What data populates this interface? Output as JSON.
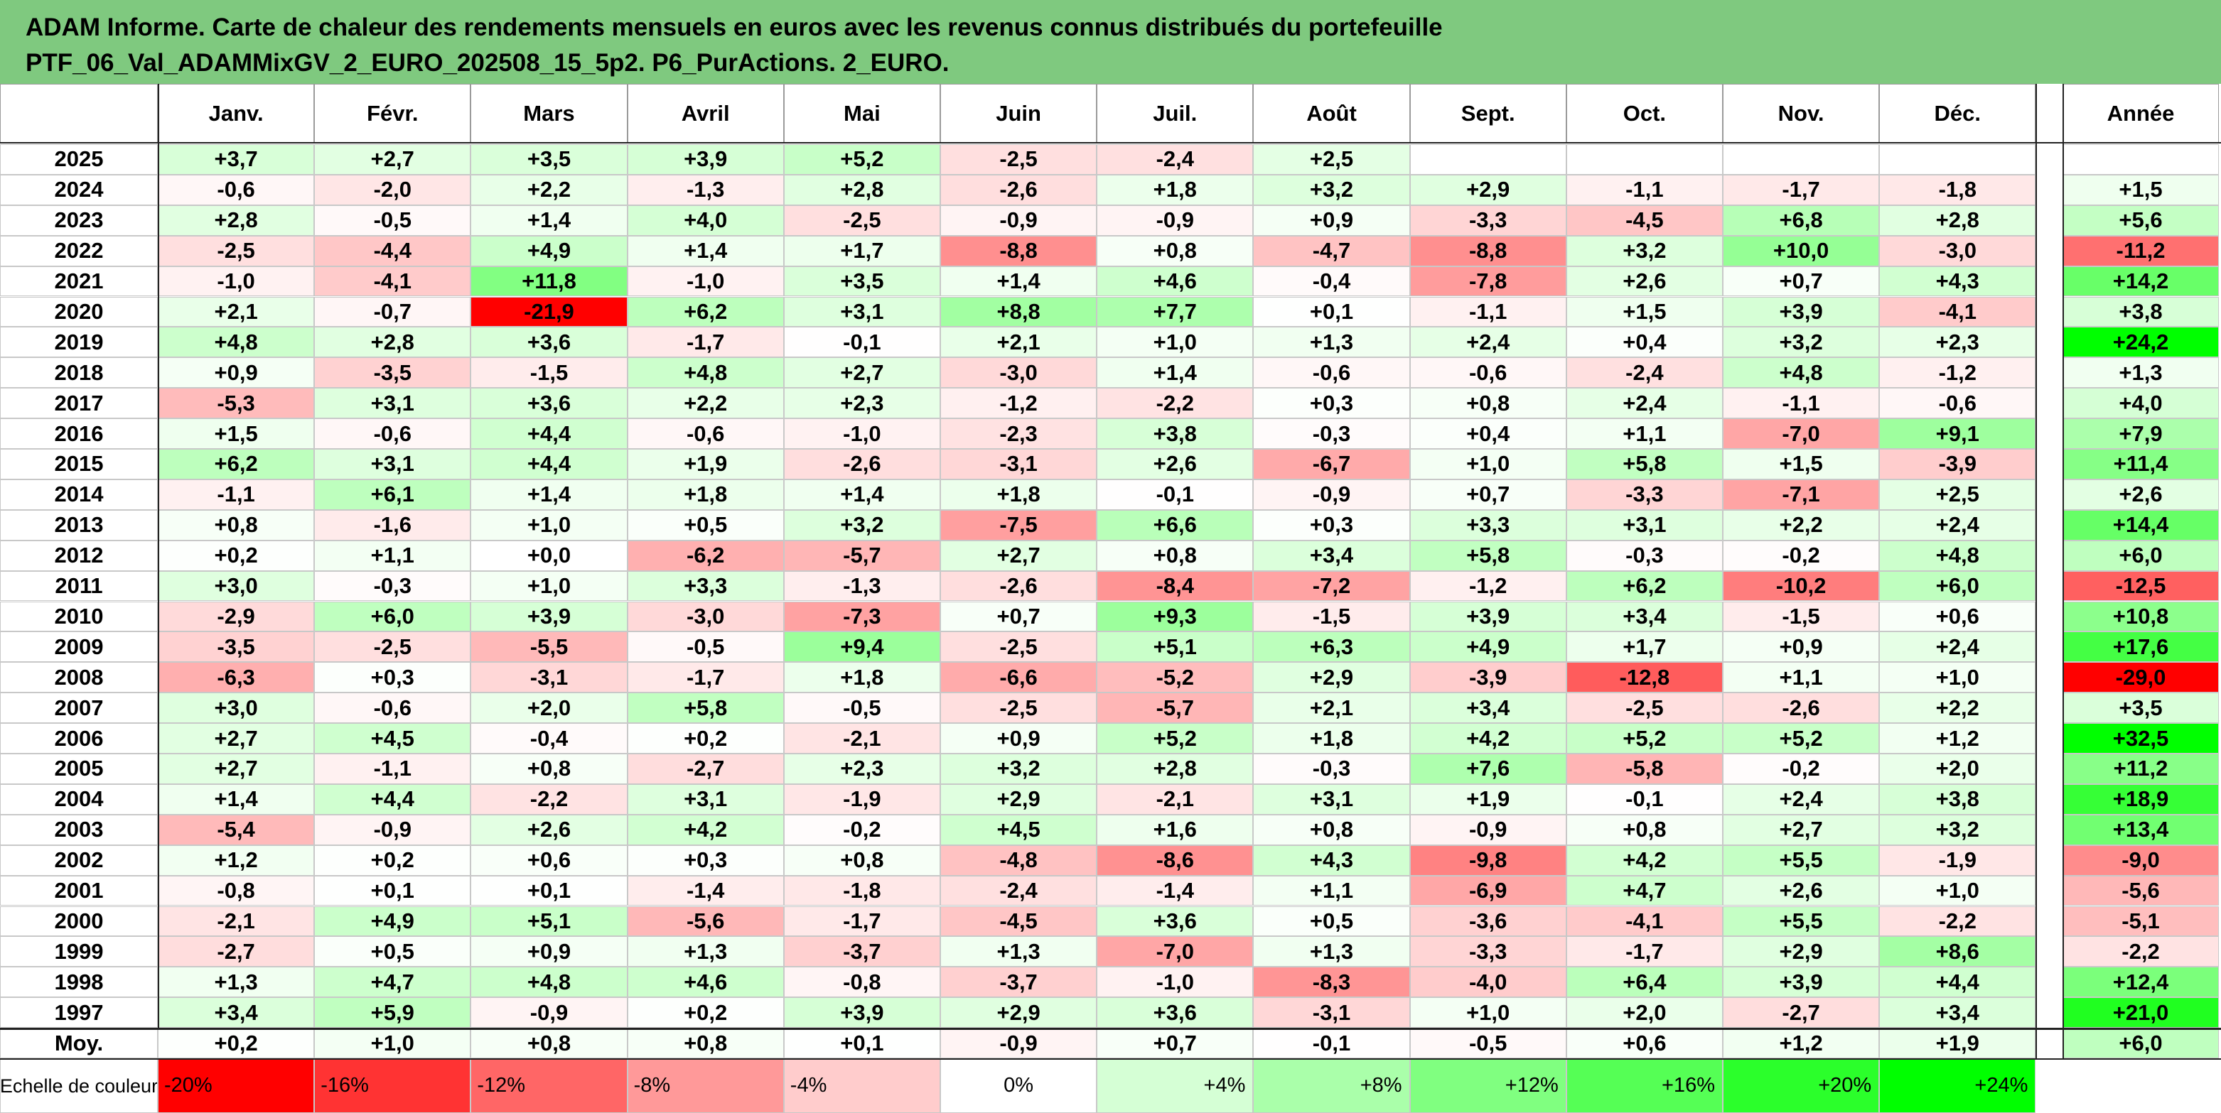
{
  "title_lines": [
    "ADAM Informe. Carte de chaleur des rendements mensuels en euros avec les revenus connus distribués du portefeuille",
    "PTF_06_Val_ADAMMixGV_2_EURO_202508_15_5p2. P6_PurActions. 2_EURO."
  ],
  "chart_data": {
    "type": "heatmap",
    "title": "ADAM Informe. Carte de chaleur des rendements mensuels en euros avec les revenus connus distribués du portefeuille PTF_06_Val_ADAMMixGV_2_EURO_202508_15_5p2. P6_PurActions. 2_EURO.",
    "months": [
      "Janv.",
      "Févr.",
      "Mars",
      "Avril",
      "Mai",
      "Juin",
      "Juil.",
      "Août",
      "Sept.",
      "Oct.",
      "Nov.",
      "Déc."
    ],
    "year_header": "Année",
    "rows": [
      {
        "year": "2025",
        "values": [
          "+3,7",
          "+2,7",
          "+3,5",
          "+3,9",
          "+5,2",
          "-2,5",
          "-2,4",
          "+2,5",
          "",
          "",
          "",
          ""
        ],
        "annual": ""
      },
      {
        "year": "2024",
        "values": [
          "-0,6",
          "-2,0",
          "+2,2",
          "-1,3",
          "+2,8",
          "-2,6",
          "+1,8",
          "+3,2",
          "+2,9",
          "-1,1",
          "-1,7",
          "-1,8"
        ],
        "annual": "+1,5"
      },
      {
        "year": "2023",
        "values": [
          "+2,8",
          "-0,5",
          "+1,4",
          "+4,0",
          "-2,5",
          "-0,9",
          "-0,9",
          "+0,9",
          "-3,3",
          "-4,5",
          "+6,8",
          "+2,8"
        ],
        "annual": "+5,6"
      },
      {
        "year": "2022",
        "values": [
          "-2,5",
          "-4,4",
          "+4,9",
          "+1,4",
          "+1,7",
          "-8,8",
          "+0,8",
          "-4,7",
          "-8,8",
          "+3,2",
          "+10,0",
          "-3,0"
        ],
        "annual": "-11,2"
      },
      {
        "year": "2021",
        "values": [
          "-1,0",
          "-4,1",
          "+11,8",
          "-1,0",
          "+3,5",
          "+1,4",
          "+4,6",
          "-0,4",
          "-7,8",
          "+2,6",
          "+0,7",
          "+4,3"
        ],
        "annual": "+14,2"
      },
      {
        "year": "2020",
        "values": [
          "+2,1",
          "-0,7",
          "-21,9",
          "+6,2",
          "+3,1",
          "+8,8",
          "+7,7",
          "+0,1",
          "-1,1",
          "+1,5",
          "+3,9",
          "-4,1"
        ],
        "annual": "+3,8"
      },
      {
        "year": "2019",
        "values": [
          "+4,8",
          "+2,8",
          "+3,6",
          "-1,7",
          "-0,1",
          "+2,1",
          "+1,0",
          "+1,3",
          "+2,4",
          "+0,4",
          "+3,2",
          "+2,3"
        ],
        "annual": "+24,2"
      },
      {
        "year": "2018",
        "values": [
          "+0,9",
          "-3,5",
          "-1,5",
          "+4,8",
          "+2,7",
          "-3,0",
          "+1,4",
          "-0,6",
          "-0,6",
          "-2,4",
          "+4,8",
          "-1,2"
        ],
        "annual": "+1,3"
      },
      {
        "year": "2017",
        "values": [
          "-5,3",
          "+3,1",
          "+3,6",
          "+2,2",
          "+2,3",
          "-1,2",
          "-2,2",
          "+0,3",
          "+0,8",
          "+2,4",
          "-1,1",
          "-0,6"
        ],
        "annual": "+4,0"
      },
      {
        "year": "2016",
        "values": [
          "+1,5",
          "-0,6",
          "+4,4",
          "-0,6",
          "-1,0",
          "-2,3",
          "+3,8",
          "-0,3",
          "+0,4",
          "+1,1",
          "-7,0",
          "+9,1"
        ],
        "annual": "+7,9"
      },
      {
        "year": "2015",
        "values": [
          "+6,2",
          "+3,1",
          "+4,4",
          "+1,9",
          "-2,6",
          "-3,1",
          "+2,6",
          "-6,7",
          "+1,0",
          "+5,8",
          "+1,5",
          "-3,9"
        ],
        "annual": "+11,4"
      },
      {
        "year": "2014",
        "values": [
          "-1,1",
          "+6,1",
          "+1,4",
          "+1,8",
          "+1,4",
          "+1,8",
          "-0,1",
          "-0,9",
          "+0,7",
          "-3,3",
          "-7,1",
          "+2,5"
        ],
        "annual": "+2,6"
      },
      {
        "year": "2013",
        "values": [
          "+0,8",
          "-1,6",
          "+1,0",
          "+0,5",
          "+3,2",
          "-7,5",
          "+6,6",
          "+0,3",
          "+3,3",
          "+3,1",
          "+2,2",
          "+2,4"
        ],
        "annual": "+14,4"
      },
      {
        "year": "2012",
        "values": [
          "+0,2",
          "+1,1",
          "+0,0",
          "-6,2",
          "-5,7",
          "+2,7",
          "+0,8",
          "+3,4",
          "+5,8",
          "-0,3",
          "-0,2",
          "+4,8"
        ],
        "annual": "+6,0"
      },
      {
        "year": "2011",
        "values": [
          "+3,0",
          "-0,3",
          "+1,0",
          "+3,3",
          "-1,3",
          "-2,6",
          "-8,4",
          "-7,2",
          "-1,2",
          "+6,2",
          "-10,2",
          "+6,0"
        ],
        "annual": "-12,5"
      },
      {
        "year": "2010",
        "values": [
          "-2,9",
          "+6,0",
          "+3,9",
          "-3,0",
          "-7,3",
          "+0,7",
          "+9,3",
          "-1,5",
          "+3,9",
          "+3,4",
          "-1,5",
          "+0,6"
        ],
        "annual": "+10,8"
      },
      {
        "year": "2009",
        "values": [
          "-3,5",
          "-2,5",
          "-5,5",
          "-0,5",
          "+9,4",
          "-2,5",
          "+5,1",
          "+6,3",
          "+4,9",
          "+1,7",
          "+0,9",
          "+2,4"
        ],
        "annual": "+17,6"
      },
      {
        "year": "2008",
        "values": [
          "-6,3",
          "+0,3",
          "-3,1",
          "-1,7",
          "+1,8",
          "-6,6",
          "-5,2",
          "+2,9",
          "-3,9",
          "-12,8",
          "+1,1",
          "+1,0"
        ],
        "annual": "-29,0"
      },
      {
        "year": "2007",
        "values": [
          "+3,0",
          "-0,6",
          "+2,0",
          "+5,8",
          "-0,5",
          "-2,5",
          "-5,7",
          "+2,1",
          "+3,4",
          "-2,5",
          "-2,6",
          "+2,2"
        ],
        "annual": "+3,5"
      },
      {
        "year": "2006",
        "values": [
          "+2,7",
          "+4,5",
          "-0,4",
          "+0,2",
          "-2,1",
          "+0,9",
          "+5,2",
          "+1,8",
          "+4,2",
          "+5,2",
          "+5,2",
          "+1,2"
        ],
        "annual": "+32,5"
      },
      {
        "year": "2005",
        "values": [
          "+2,7",
          "-1,1",
          "+0,8",
          "-2,7",
          "+2,3",
          "+3,2",
          "+2,8",
          "-0,3",
          "+7,6",
          "-5,8",
          "-0,2",
          "+2,0"
        ],
        "annual": "+11,2"
      },
      {
        "year": "2004",
        "values": [
          "+1,4",
          "+4,4",
          "-2,2",
          "+3,1",
          "-1,9",
          "+2,9",
          "-2,1",
          "+3,1",
          "+1,9",
          "-0,1",
          "+2,4",
          "+3,8"
        ],
        "annual": "+18,9"
      },
      {
        "year": "2003",
        "values": [
          "-5,4",
          "-0,9",
          "+2,6",
          "+4,2",
          "-0,2",
          "+4,5",
          "+1,6",
          "+0,8",
          "-0,9",
          "+0,8",
          "+2,7",
          "+3,2"
        ],
        "annual": "+13,4"
      },
      {
        "year": "2002",
        "values": [
          "+1,2",
          "+0,2",
          "+0,6",
          "+0,3",
          "+0,8",
          "-4,8",
          "-8,6",
          "+4,3",
          "-9,8",
          "+4,2",
          "+5,5",
          "-1,9"
        ],
        "annual": "-9,0"
      },
      {
        "year": "2001",
        "values": [
          "-0,8",
          "+0,1",
          "+0,1",
          "-1,4",
          "-1,8",
          "-2,4",
          "-1,4",
          "+1,1",
          "-6,9",
          "+4,7",
          "+2,6",
          "+1,0"
        ],
        "annual": "-5,6"
      },
      {
        "year": "2000",
        "values": [
          "-2,1",
          "+4,9",
          "+5,1",
          "-5,6",
          "-1,7",
          "-4,5",
          "+3,6",
          "+0,5",
          "-3,6",
          "-4,1",
          "+5,5",
          "-2,2"
        ],
        "annual": "-5,1"
      },
      {
        "year": "1999",
        "values": [
          "-2,7",
          "+0,5",
          "+0,9",
          "+1,3",
          "-3,7",
          "+1,3",
          "-7,0",
          "+1,3",
          "-3,3",
          "-1,7",
          "+2,9",
          "+8,6"
        ],
        "annual": "-2,2"
      },
      {
        "year": "1998",
        "values": [
          "+1,3",
          "+4,7",
          "+4,8",
          "+4,6",
          "-0,8",
          "-3,7",
          "-1,0",
          "-8,3",
          "-4,0",
          "+6,4",
          "+3,9",
          "+4,4"
        ],
        "annual": "+12,4"
      },
      {
        "year": "1997",
        "values": [
          "+3,4",
          "+5,9",
          "-0,9",
          "+0,2",
          "+3,9",
          "+2,9",
          "+3,6",
          "-3,1",
          "+1,0",
          "+2,0",
          "-2,7",
          "+3,4"
        ],
        "annual": "+21,0"
      }
    ],
    "average": {
      "label": "Moy.",
      "values": [
        "+0,2",
        "+1,0",
        "+0,8",
        "+0,8",
        "+0,1",
        "-0,9",
        "+0,7",
        "-0,1",
        "-0,5",
        "+0,6",
        "+1,2",
        "+1,9"
      ],
      "annual": "+6,0"
    },
    "scale": {
      "label": "Echelle de couleur",
      "steps": [
        "-20%",
        "-16%",
        "-12%",
        "-8%",
        "-4%",
        "0%",
        "+4%",
        "+8%",
        "+12%",
        "+16%",
        "+20%",
        "+24%"
      ],
      "step_values": [
        -20,
        -16,
        -12,
        -8,
        -4,
        0,
        4,
        8,
        12,
        16,
        20,
        24
      ]
    },
    "colors": {
      "negative_max": "#ff0000",
      "neutral": "#ffffff",
      "positive_max": "#00ff00",
      "title_bg": "#7fc97f"
    }
  }
}
